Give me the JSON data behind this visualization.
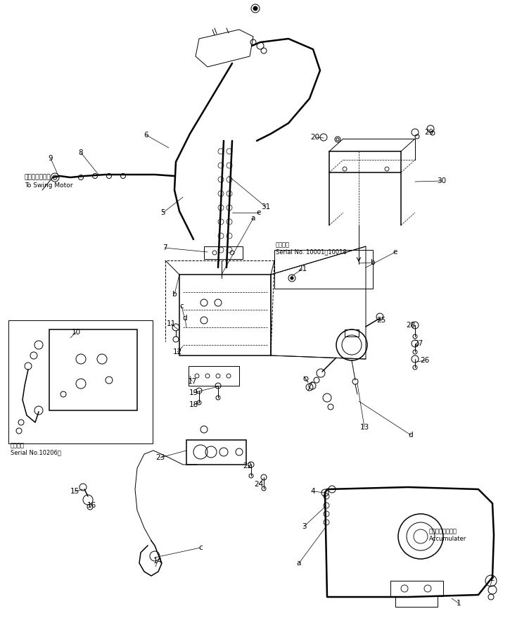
{
  "bg_color": "#ffffff",
  "fig_width": 7.25,
  "fig_height": 8.85,
  "dpi": 100,
  "swing_motor_jp": "旋回モーターへ",
  "swing_motor_en": "To Swing Motor",
  "serial_note_jp": "適用号機",
  "serial_note_en": "Serial No. 10001～10018",
  "serial_note2_jp": "適用号機",
  "serial_note2_en": "Serial No.10206～",
  "accum_jp": "アキュームレータ",
  "accum_en": "Accumulater"
}
